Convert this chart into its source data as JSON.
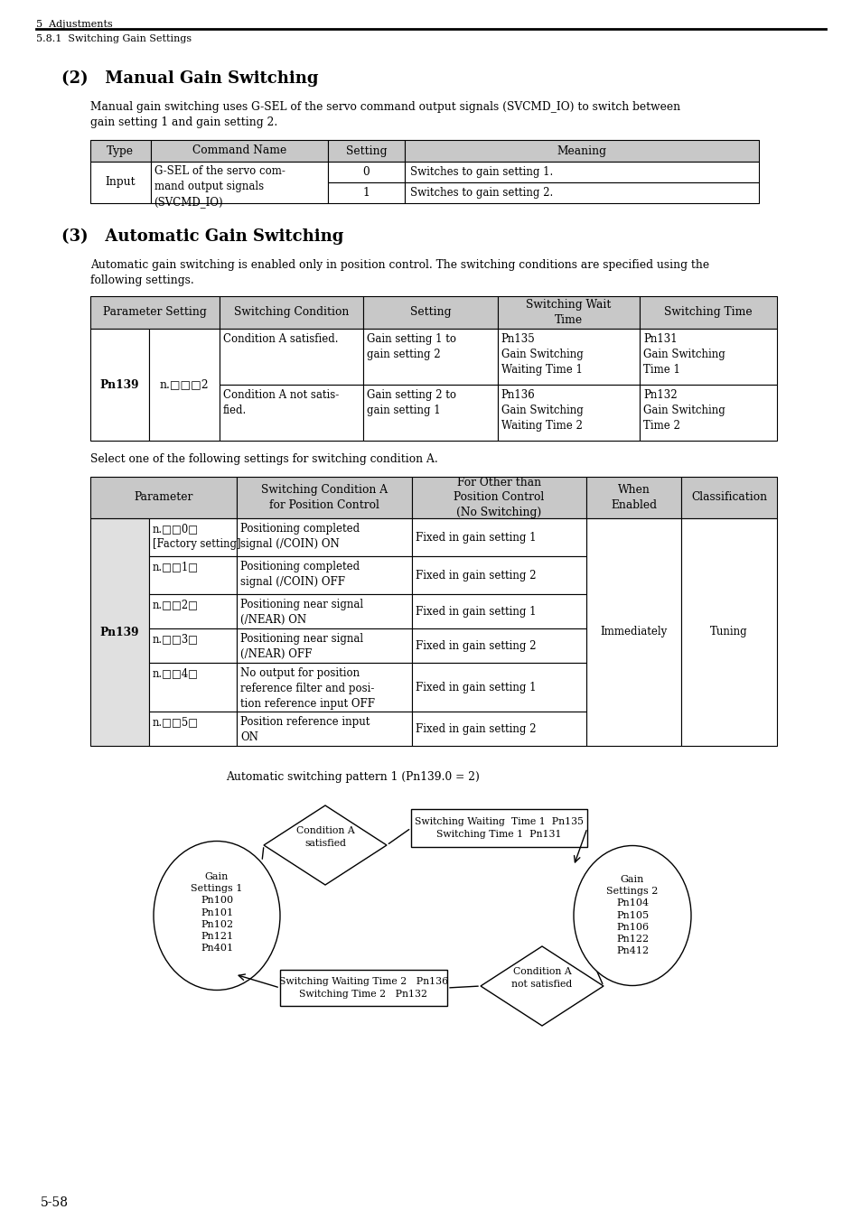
{
  "page_header_main": "5  Adjustments",
  "page_header_sub": "5.8.1  Switching Gain Settings",
  "section2_title": "(2)   Manual Gain Switching",
  "section2_body": "Manual gain switching uses G-SEL of the servo command output signals (SVCMD_IO) to switch between\ngain setting 1 and gain setting 2.",
  "section3_title": "(3)   Automatic Gain Switching",
  "section3_body": "Automatic gain switching is enabled only in position control. The switching conditions are specified using the\nfollowing settings.",
  "select_text": "Select one of the following settings for switching condition A.",
  "diagram_title": "Automatic switching pattern 1 (Pn139.0 = 2)",
  "page_number": "5-58",
  "bg_color": "#ffffff",
  "header_bg": "#c8c8c8",
  "cell_bg": "#ffffff",
  "pn139_bg": "#e0e0e0"
}
